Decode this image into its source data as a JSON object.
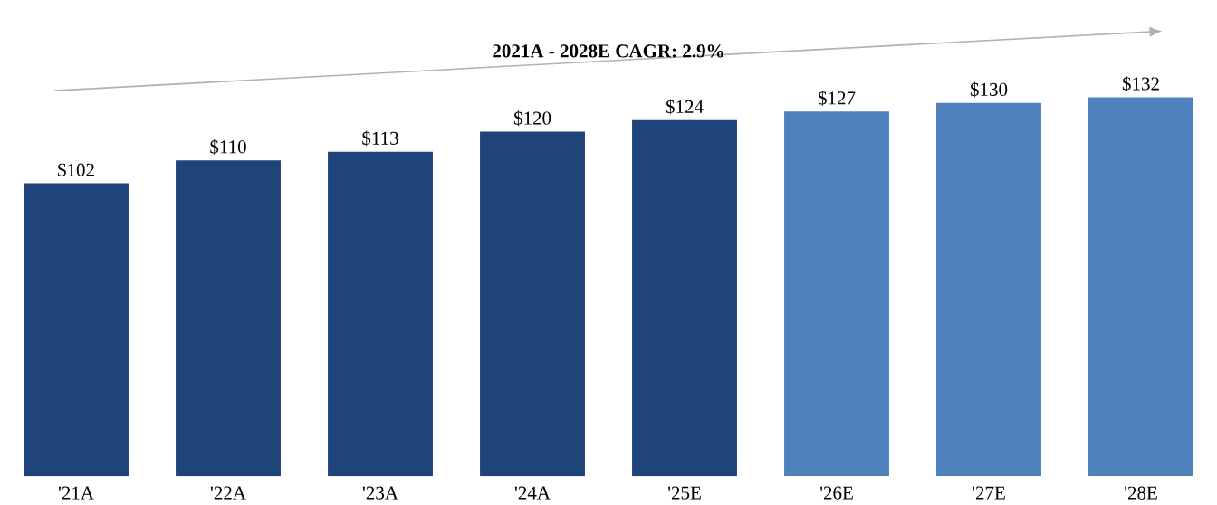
{
  "chart_data": {
    "type": "bar",
    "categories": [
      "'21A",
      "'22A",
      "'23A",
      "'24A",
      "'25E",
      "'26E",
      "'27E",
      "'28E"
    ],
    "values": [
      102,
      110,
      113,
      120,
      124,
      127,
      130,
      132
    ],
    "colors": [
      "#1f4479",
      "#1f4479",
      "#1f4479",
      "#1f4479",
      "#1f4479",
      "#4f81bd",
      "#4f81bd",
      "#4f81bd"
    ],
    "value_labels": [
      "$102",
      "$110",
      "$113",
      "$120",
      "$124",
      "$127",
      "$130",
      "$132"
    ],
    "annotations": [
      "2021A - 2028E CAGR: 2.9%"
    ]
  }
}
